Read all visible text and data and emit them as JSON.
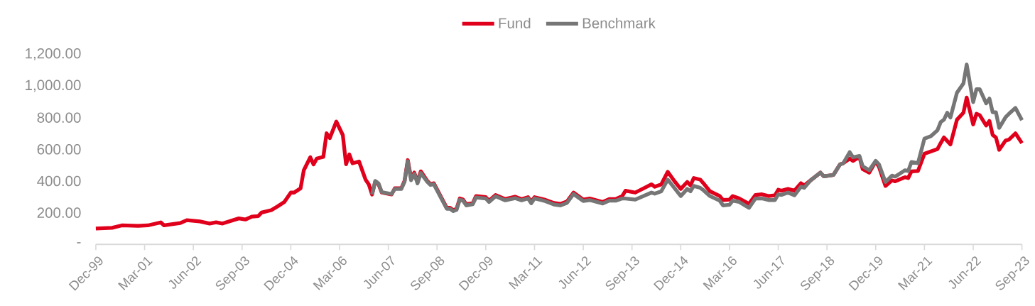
{
  "chart_data": {
    "type": "line",
    "legend": "top",
    "xlim": [
      "1999-12",
      "2023-09"
    ],
    "xticks": [
      {
        "value": "1999-12",
        "label": "Dec-99"
      },
      {
        "value": "2001-03",
        "label": "Mar-01"
      },
      {
        "value": "2002-06",
        "label": "Jun-02"
      },
      {
        "value": "2003-09",
        "label": "Sep-03"
      },
      {
        "value": "2004-12",
        "label": "Dec-04"
      },
      {
        "value": "2006-03",
        "label": "Mar-06"
      },
      {
        "value": "2007-06",
        "label": "Jun-07"
      },
      {
        "value": "2008-09",
        "label": "Sep-08"
      },
      {
        "value": "2009-12",
        "label": "Dec-09"
      },
      {
        "value": "2011-03",
        "label": "Mar-11"
      },
      {
        "value": "2012-06",
        "label": "Jun-12"
      },
      {
        "value": "2013-09",
        "label": "Sep-13"
      },
      {
        "value": "2014-12",
        "label": "Dec-14"
      },
      {
        "value": "2016-03",
        "label": "Mar-16"
      },
      {
        "value": "2017-06",
        "label": "Jun-17"
      },
      {
        "value": "2018-09",
        "label": "Sep-18"
      },
      {
        "value": "2019-12",
        "label": "Dec-19"
      },
      {
        "value": "2021-03",
        "label": "Mar-21"
      },
      {
        "value": "2022-06",
        "label": "Jun-22"
      },
      {
        "value": "2023-09",
        "label": "Sep-23"
      }
    ],
    "ylim": [
      0,
      1200
    ],
    "yticks": [
      {
        "value": 0,
        "label": "-"
      },
      {
        "value": 200,
        "label": "200.00"
      },
      {
        "value": 400,
        "label": "400.00"
      },
      {
        "value": 600,
        "label": "600.00"
      },
      {
        "value": 800,
        "label": "800.00"
      },
      {
        "value": 1000,
        "label": "1,000.00"
      },
      {
        "value": 1200,
        "label": "1,200.00"
      }
    ],
    "series": [
      {
        "name": "Fund",
        "color": "#e0001b",
        "x": [
          "1999-12",
          "2000-05",
          "2000-08",
          "2001-01",
          "2001-04",
          "2001-08",
          "2001-09",
          "2002-02",
          "2002-04",
          "2002-08",
          "2002-11",
          "2003-01",
          "2003-03",
          "2003-08",
          "2003-10",
          "2003-12",
          "2004-02",
          "2004-03",
          "2004-06",
          "2004-08",
          "2004-10",
          "2004-12",
          "2005-01",
          "2005-03",
          "2005-04",
          "2005-06",
          "2005-07",
          "2005-08",
          "2005-10",
          "2005-11",
          "2005-12",
          "2006-02",
          "2006-04",
          "2006-05",
          "2006-06",
          "2006-07",
          "2006-09",
          "2006-11",
          "2006-12",
          "2007-01",
          "2007-02",
          "2007-03",
          "2007-04",
          "2007-07",
          "2007-08",
          "2007-10",
          "2007-11",
          "2007-12",
          "2008-01",
          "2008-02",
          "2008-03",
          "2008-04",
          "2008-06",
          "2008-07",
          "2008-08",
          "2008-12",
          "2009-01",
          "2009-02",
          "2009-03",
          "2009-04",
          "2009-05",
          "2009-06",
          "2009-08",
          "2009-09",
          "2009-12",
          "2010-01",
          "2010-03",
          "2010-06",
          "2010-09",
          "2010-11",
          "2011-01",
          "2011-02",
          "2011-03",
          "2011-06",
          "2011-09",
          "2011-11",
          "2012-01",
          "2012-03",
          "2012-06",
          "2012-08",
          "2012-12",
          "2013-02",
          "2013-04",
          "2013-06",
          "2013-07",
          "2013-10",
          "2014-03",
          "2014-04",
          "2014-06",
          "2014-08",
          "2014-10",
          "2014-12",
          "2015-02",
          "2015-03",
          "2015-04",
          "2015-06",
          "2015-07",
          "2015-09",
          "2015-12",
          "2016-01",
          "2016-03",
          "2016-04",
          "2016-06",
          "2016-09",
          "2016-11",
          "2017-01",
          "2017-03",
          "2017-05",
          "2017-06",
          "2017-07",
          "2017-09",
          "2017-11",
          "2018-01",
          "2018-02",
          "2018-04",
          "2018-07",
          "2018-08",
          "2018-11",
          "2019-01",
          "2019-02",
          "2019-04",
          "2019-05",
          "2019-07",
          "2019-08",
          "2019-10",
          "2019-12",
          "2020-01",
          "2020-03",
          "2020-05",
          "2020-06",
          "2020-09",
          "2020-10",
          "2020-11",
          "2021-01",
          "2021-03",
          "2021-05",
          "2021-07",
          "2021-08",
          "2021-09",
          "2021-10",
          "2021-11",
          "2022-01",
          "2022-03",
          "2022-04",
          "2022-06",
          "2022-07",
          "2022-08",
          "2022-10",
          "2022-11",
          "2022-12",
          "2023-01",
          "2023-02",
          "2023-04",
          "2023-05",
          "2023-07",
          "2023-09"
        ],
        "values": [
          100,
          105,
          120,
          117,
          120,
          139,
          120,
          135,
          153,
          145,
          132,
          139,
          132,
          164,
          157,
          175,
          179,
          201,
          216,
          241,
          268,
          327,
          327,
          354,
          468,
          550,
          505,
          542,
          552,
          701,
          671,
          775,
          690,
          506,
          568,
          512,
          523,
          409,
          379,
          315,
          398,
          379,
          327,
          315,
          354,
          354,
          401,
          532,
          420,
          453,
          394,
          461,
          401,
          380,
          386,
          231,
          231,
          216,
          224,
          290,
          283,
          253,
          261,
          305,
          298,
          276,
          312,
          286,
          301,
          286,
          298,
          270,
          298,
          283,
          261,
          256,
          271,
          327,
          283,
          290,
          268,
          286,
          286,
          305,
          339,
          327,
          379,
          364,
          379,
          458,
          401,
          350,
          394,
          372,
          419,
          409,
          385,
          335,
          305,
          280,
          283,
          305,
          290,
          256,
          312,
          316,
          305,
          310,
          345,
          339,
          350,
          339,
          386,
          372,
          405,
          453,
          430,
          439,
          505,
          512,
          542,
          527,
          552,
          475,
          453,
          523,
          490,
          369,
          404,
          398,
          424,
          419,
          461,
          463,
          572,
          587,
          601,
          639,
          675,
          653,
          631,
          787,
          831,
          927,
          757,
          824,
          816,
          750,
          779,
          690,
          675,
          597,
          656,
          661,
          701,
          639
        ]
      },
      {
        "name": "Benchmark",
        "color": "#767676",
        "x": [
          "2007-01",
          "2007-02",
          "2007-03",
          "2007-04",
          "2007-07",
          "2007-08",
          "2007-10",
          "2007-11",
          "2007-12",
          "2008-01",
          "2008-02",
          "2008-03",
          "2008-04",
          "2008-06",
          "2008-07",
          "2008-08",
          "2008-12",
          "2009-01",
          "2009-02",
          "2009-03",
          "2009-04",
          "2009-05",
          "2009-06",
          "2009-08",
          "2009-09",
          "2009-12",
          "2010-01",
          "2010-03",
          "2010-06",
          "2010-09",
          "2010-11",
          "2011-01",
          "2011-02",
          "2011-03",
          "2011-06",
          "2011-09",
          "2011-11",
          "2012-01",
          "2012-03",
          "2012-06",
          "2012-08",
          "2012-12",
          "2013-02",
          "2013-04",
          "2013-06",
          "2013-07",
          "2013-10",
          "2014-03",
          "2014-04",
          "2014-06",
          "2014-08",
          "2014-10",
          "2014-12",
          "2015-02",
          "2015-03",
          "2015-04",
          "2015-06",
          "2015-07",
          "2015-09",
          "2015-12",
          "2016-01",
          "2016-03",
          "2016-04",
          "2016-06",
          "2016-09",
          "2016-11",
          "2017-01",
          "2017-03",
          "2017-05",
          "2017-06",
          "2017-07",
          "2017-09",
          "2017-11",
          "2018-01",
          "2018-02",
          "2018-04",
          "2018-07",
          "2018-08",
          "2018-11",
          "2019-01",
          "2019-02",
          "2019-04",
          "2019-05",
          "2019-07",
          "2019-08",
          "2019-10",
          "2019-12",
          "2020-01",
          "2020-03",
          "2020-05",
          "2020-06",
          "2020-09",
          "2020-10",
          "2020-11",
          "2021-01",
          "2021-03",
          "2021-05",
          "2021-07",
          "2021-08",
          "2021-09",
          "2021-10",
          "2021-11",
          "2022-01",
          "2022-03",
          "2022-04",
          "2022-06",
          "2022-07",
          "2022-08",
          "2022-10",
          "2022-11",
          "2022-12",
          "2023-01",
          "2023-02",
          "2023-04",
          "2023-05",
          "2023-07",
          "2023-09"
        ],
        "values": [
          315,
          400,
          385,
          330,
          318,
          350,
          350,
          395,
          525,
          405,
          445,
          385,
          450,
          395,
          375,
          380,
          225,
          225,
          210,
          218,
          282,
          276,
          246,
          254,
          296,
          290,
          268,
          304,
          278,
          292,
          278,
          290,
          260,
          290,
          275,
          252,
          246,
          262,
          318,
          274,
          280,
          258,
          276,
          276,
          290,
          290,
          283,
          327,
          320,
          335,
          409,
          357,
          305,
          350,
          335,
          369,
          357,
          342,
          305,
          276,
          246,
          250,
          276,
          268,
          231,
          290,
          290,
          280,
          280,
          316,
          312,
          327,
          310,
          364,
          357,
          405,
          453,
          430,
          439,
          505,
          512,
          582,
          550,
          558,
          493,
          468,
          527,
          505,
          394,
          434,
          428,
          468,
          463,
          520,
          512,
          668,
          683,
          720,
          772,
          787,
          831,
          801,
          957,
          1016,
          1135,
          898,
          979,
          979,
          890,
          920,
          834,
          834,
          735,
          804,
          824,
          861,
          784
        ]
      }
    ]
  }
}
